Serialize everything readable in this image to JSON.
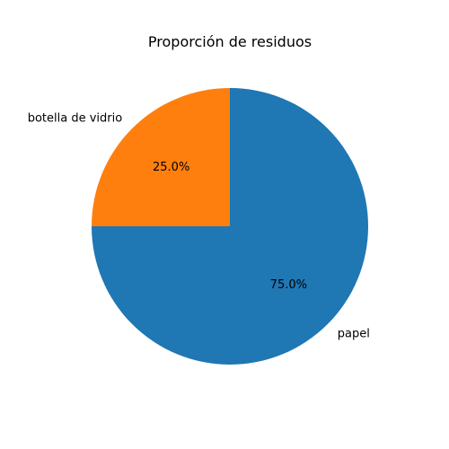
{
  "chart_data": {
    "type": "pie",
    "title": "Proporción de residuos",
    "slices": [
      {
        "label": "botella de vidrio",
        "value": 25.0,
        "percent_label": "25.0%",
        "color": "#ff7f0e"
      },
      {
        "label": "papel",
        "value": 75.0,
        "percent_label": "75.0%",
        "color": "#1f77b4"
      }
    ],
    "start_angle_deg": 90,
    "direction": "counterclockwise",
    "legend": "none"
  }
}
